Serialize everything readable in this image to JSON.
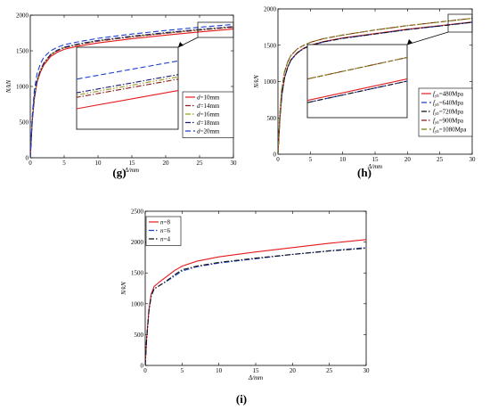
{
  "panel_labels": {
    "g": "(g)",
    "h": "(h)",
    "i": "(i)"
  },
  "chart_data": [
    {
      "id": "g",
      "type": "line",
      "xlabel": "Δ/mm",
      "ylabel": "N/kN",
      "xlim": [
        0,
        30
      ],
      "ylim": [
        0,
        2000
      ],
      "xticks": [
        0,
        5,
        10,
        15,
        20,
        25,
        30
      ],
      "yticks": [
        0,
        500,
        1000,
        1500,
        2000
      ],
      "legend_position": "right-middle",
      "has_zoom_inset": true,
      "series": [
        {
          "name": "d=10mm",
          "prefix": "d",
          "suffix": "=10mm",
          "color": "#e41a1c",
          "dash": "solid",
          "points": [
            [
              0,
              0
            ],
            [
              0.3,
              520
            ],
            [
              0.6,
              820
            ],
            [
              1,
              1060
            ],
            [
              1.5,
              1200
            ],
            [
              2,
              1300
            ],
            [
              3,
              1420
            ],
            [
              4,
              1480
            ],
            [
              5,
              1520
            ],
            [
              7,
              1565
            ],
            [
              10,
              1610
            ],
            [
              15,
              1670
            ],
            [
              20,
              1720
            ],
            [
              25,
              1765
            ],
            [
              30,
              1805
            ]
          ]
        },
        {
          "name": "d=14mm",
          "prefix": "d",
          "suffix": "=14mm",
          "color": "#8b1a1a",
          "dash": "dashdot",
          "points": [
            [
              0,
              0
            ],
            [
              0.3,
              540
            ],
            [
              0.6,
              850
            ],
            [
              1,
              1080
            ],
            [
              1.5,
              1220
            ],
            [
              2,
              1320
            ],
            [
              3,
              1440
            ],
            [
              4,
              1500
            ],
            [
              5,
              1540
            ],
            [
              7,
              1585
            ],
            [
              10,
              1635
            ],
            [
              15,
              1695
            ],
            [
              20,
              1745
            ],
            [
              25,
              1790
            ],
            [
              30,
              1830
            ]
          ]
        },
        {
          "name": "d=16mm",
          "prefix": "d",
          "suffix": "=16mm",
          "color": "#9a9a1e",
          "dash": "dashdotdot",
          "points": [
            [
              0,
              0
            ],
            [
              0.3,
              545
            ],
            [
              0.6,
              855
            ],
            [
              1,
              1085
            ],
            [
              1.5,
              1225
            ],
            [
              2,
              1325
            ],
            [
              3,
              1445
            ],
            [
              4,
              1505
            ],
            [
              5,
              1545
            ],
            [
              7,
              1590
            ],
            [
              10,
              1640
            ],
            [
              15,
              1700
            ],
            [
              20,
              1750
            ],
            [
              25,
              1795
            ],
            [
              30,
              1835
            ]
          ]
        },
        {
          "name": "d=18mm",
          "prefix": "d",
          "suffix": "=18mm",
          "color": "#1a1a70",
          "dash": "dashdot",
          "points": [
            [
              0,
              0
            ],
            [
              0.3,
              550
            ],
            [
              0.6,
              860
            ],
            [
              1,
              1090
            ],
            [
              1.5,
              1230
            ],
            [
              2,
              1330
            ],
            [
              3,
              1450
            ],
            [
              4,
              1510
            ],
            [
              5,
              1550
            ],
            [
              7,
              1595
            ],
            [
              10,
              1645
            ],
            [
              15,
              1705
            ],
            [
              20,
              1755
            ],
            [
              25,
              1800
            ],
            [
              30,
              1840
            ]
          ]
        },
        {
          "name": "d=20mm",
          "prefix": "d",
          "suffix": "=20mm",
          "color": "#1f3fd0",
          "dash": "dash",
          "points": [
            [
              0,
              0
            ],
            [
              0.3,
              600
            ],
            [
              0.6,
              950
            ],
            [
              1,
              1180
            ],
            [
              1.5,
              1320
            ],
            [
              2,
              1410
            ],
            [
              3,
              1500
            ],
            [
              4,
              1550
            ],
            [
              5,
              1585
            ],
            [
              7,
              1625
            ],
            [
              10,
              1675
            ],
            [
              15,
              1735
            ],
            [
              20,
              1785
            ],
            [
              25,
              1830
            ],
            [
              30,
              1870
            ]
          ]
        }
      ]
    },
    {
      "id": "h",
      "type": "line",
      "xlabel": "Δ/mm",
      "ylabel": "N/kN",
      "xlim": [
        0,
        30
      ],
      "ylim": [
        0,
        2000
      ],
      "xticks": [
        0,
        5,
        10,
        15,
        20,
        25,
        30
      ],
      "yticks": [
        0,
        500,
        1000,
        1500,
        2000
      ],
      "legend_position": "right-middle",
      "has_zoom_inset": true,
      "series": [
        {
          "name": "fyh=480Mpa",
          "prefix": "f",
          "sub": "yh",
          "suffix": "=480Mpa",
          "color": "#e41a1c",
          "dash": "solid",
          "points": [
            [
              0,
              0
            ],
            [
              0.3,
              500
            ],
            [
              0.6,
              820
            ],
            [
              1,
              1050
            ],
            [
              1.5,
              1200
            ],
            [
              2,
              1300
            ],
            [
              3,
              1400
            ],
            [
              4,
              1460
            ],
            [
              5,
              1500
            ],
            [
              7,
              1550
            ],
            [
              10,
              1600
            ],
            [
              15,
              1660
            ],
            [
              20,
              1720
            ],
            [
              25,
              1770
            ],
            [
              30,
              1820
            ]
          ]
        },
        {
          "name": "fyh=640Mpa",
          "prefix": "f",
          "sub": "yh",
          "suffix": "=640Mpa",
          "color": "#1f3fd0",
          "dash": "dash",
          "points": [
            [
              0,
              0
            ],
            [
              0.3,
              500
            ],
            [
              0.6,
              815
            ],
            [
              1,
              1045
            ],
            [
              1.5,
              1195
            ],
            [
              2,
              1295
            ],
            [
              3,
              1395
            ],
            [
              4,
              1455
            ],
            [
              5,
              1495
            ],
            [
              7,
              1545
            ],
            [
              10,
              1595
            ],
            [
              15,
              1655
            ],
            [
              20,
              1715
            ],
            [
              25,
              1765
            ],
            [
              30,
              1815
            ]
          ]
        },
        {
          "name": "fyh=720Mpa",
          "prefix": "f",
          "sub": "yh",
          "suffix": "=720Mpa",
          "color": "#111111",
          "dash": "dashdot",
          "points": [
            [
              0,
              0
            ],
            [
              0.3,
              500
            ],
            [
              0.6,
              815
            ],
            [
              1,
              1045
            ],
            [
              1.5,
              1195
            ],
            [
              2,
              1295
            ],
            [
              3,
              1395
            ],
            [
              4,
              1455
            ],
            [
              5,
              1495
            ],
            [
              7,
              1545
            ],
            [
              10,
              1595
            ],
            [
              15,
              1655
            ],
            [
              20,
              1715
            ],
            [
              25,
              1765
            ],
            [
              30,
              1815
            ]
          ]
        },
        {
          "name": "fyh=900Mpa",
          "prefix": "f",
          "sub": "yh",
          "suffix": "=900Mpa",
          "color": "#8b1a1a",
          "dash": "dashdot",
          "points": [
            [
              0,
              0
            ],
            [
              0.3,
              560
            ],
            [
              0.6,
              900
            ],
            [
              1,
              1130
            ],
            [
              1.5,
              1270
            ],
            [
              2,
              1360
            ],
            [
              3,
              1450
            ],
            [
              4,
              1500
            ],
            [
              5,
              1540
            ],
            [
              7,
              1590
            ],
            [
              10,
              1640
            ],
            [
              15,
              1710
            ],
            [
              20,
              1770
            ],
            [
              25,
              1820
            ],
            [
              30,
              1870
            ]
          ]
        },
        {
          "name": "fyh=1080Mpa",
          "prefix": "f",
          "sub": "yh",
          "suffix": "=1080Mpa",
          "color": "#7a7a10",
          "dash": "dash",
          "points": [
            [
              0,
              0
            ],
            [
              0.3,
              560
            ],
            [
              0.6,
              900
            ],
            [
              1,
              1130
            ],
            [
              1.5,
              1270
            ],
            [
              2,
              1360
            ],
            [
              3,
              1450
            ],
            [
              4,
              1500
            ],
            [
              5,
              1540
            ],
            [
              7,
              1590
            ],
            [
              10,
              1640
            ],
            [
              15,
              1710
            ],
            [
              20,
              1770
            ],
            [
              25,
              1820
            ],
            [
              30,
              1870
            ]
          ]
        }
      ]
    },
    {
      "id": "i",
      "type": "line",
      "xlabel": "Δ/mm",
      "ylabel": "N/kN",
      "xlim": [
        0,
        30
      ],
      "ylim": [
        0,
        2500
      ],
      "xticks": [
        0,
        5,
        10,
        15,
        20,
        25,
        30
      ],
      "yticks": [
        0,
        500,
        1000,
        1500,
        2000,
        2500
      ],
      "legend_position": "top-left",
      "has_zoom_inset": false,
      "series": [
        {
          "name": "n=8",
          "prefix": "n",
          "suffix": "=8",
          "color": "#e41a1c",
          "dash": "solid",
          "points": [
            [
              0,
              0
            ],
            [
              0.2,
              450
            ],
            [
              0.5,
              900
            ],
            [
              0.8,
              1150
            ],
            [
              1.2,
              1280
            ],
            [
              2,
              1360
            ],
            [
              3,
              1450
            ],
            [
              4,
              1540
            ],
            [
              5,
              1610
            ],
            [
              7,
              1690
            ],
            [
              10,
              1760
            ],
            [
              15,
              1840
            ],
            [
              20,
              1910
            ],
            [
              25,
              1980
            ],
            [
              30,
              2040
            ]
          ]
        },
        {
          "name": "n=6",
          "prefix": "n",
          "suffix": "=6",
          "color": "#1f3fd0",
          "dash": "dashdot",
          "points": [
            [
              0,
              0
            ],
            [
              0.2,
              440
            ],
            [
              0.5,
              880
            ],
            [
              0.8,
              1120
            ],
            [
              1.2,
              1240
            ],
            [
              2,
              1300
            ],
            [
              3,
              1370
            ],
            [
              4,
              1450
            ],
            [
              5,
              1530
            ],
            [
              7,
              1600
            ],
            [
              10,
              1660
            ],
            [
              15,
              1730
            ],
            [
              20,
              1800
            ],
            [
              25,
              1860
            ],
            [
              30,
              1910
            ]
          ]
        },
        {
          "name": "n=4",
          "prefix": "n",
          "suffix": "=4",
          "color": "#111111",
          "dash": "dashdot",
          "points": [
            [
              0,
              0
            ],
            [
              0.2,
              440
            ],
            [
              0.5,
              880
            ],
            [
              0.8,
              1120
            ],
            [
              1.2,
              1240
            ],
            [
              2,
              1300
            ],
            [
              3,
              1380
            ],
            [
              4,
              1470
            ],
            [
              5,
              1550
            ],
            [
              7,
              1610
            ],
            [
              10,
              1670
            ],
            [
              15,
              1740
            ],
            [
              20,
              1800
            ],
            [
              25,
              1855
            ],
            [
              30,
              1900
            ]
          ]
        }
      ]
    }
  ]
}
